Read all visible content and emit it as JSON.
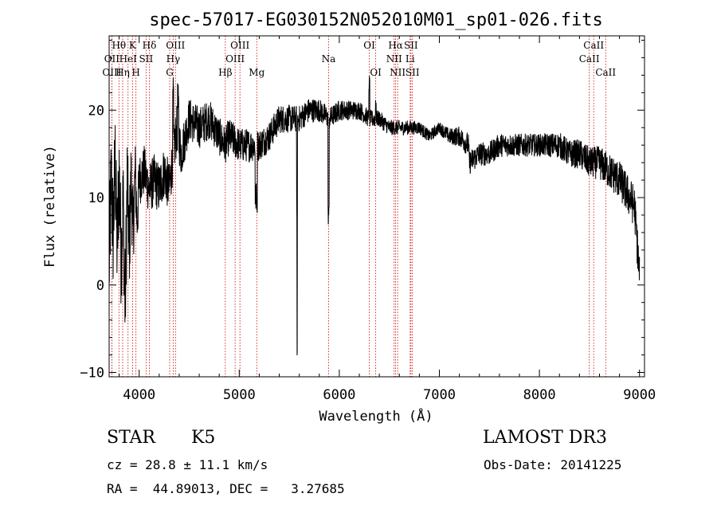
{
  "chart_data": {
    "type": "line",
    "title": "spec-57017-EG030152N052010M01_sp01-026.fits",
    "xlabel": "Wavelength (Å)",
    "ylabel": "Flux (relative)",
    "xlim": [
      3700,
      9050
    ],
    "ylim": [
      -10.5,
      28.5
    ],
    "x_ticks": [
      4000,
      5000,
      6000,
      7000,
      8000,
      9000
    ],
    "y_ticks": [
      -10,
      0,
      10,
      20
    ],
    "line_color": "#000000",
    "marker_color": "#cc0000",
    "anchors": [
      [
        3700,
        2
      ],
      [
        3720,
        12
      ],
      [
        3740,
        6
      ],
      [
        3760,
        14
      ],
      [
        3780,
        4
      ],
      [
        3800,
        13
      ],
      [
        3820,
        3
      ],
      [
        3840,
        10
      ],
      [
        3860,
        -3
      ],
      [
        3880,
        12
      ],
      [
        3900,
        4
      ],
      [
        3920,
        12
      ],
      [
        3940,
        6
      ],
      [
        3960,
        13
      ],
      [
        3980,
        7
      ],
      [
        4000,
        12
      ],
      [
        4050,
        13
      ],
      [
        4100,
        11
      ],
      [
        4150,
        12
      ],
      [
        4200,
        11
      ],
      [
        4250,
        13
      ],
      [
        4300,
        11
      ],
      [
        4340,
        15
      ],
      [
        4380,
        18
      ],
      [
        4420,
        15
      ],
      [
        4500,
        19
      ],
      [
        4600,
        18
      ],
      [
        4700,
        19
      ],
      [
        4800,
        17
      ],
      [
        4860,
        16
      ],
      [
        4900,
        17
      ],
      [
        5000,
        16
      ],
      [
        5100,
        16
      ],
      [
        5200,
        16
      ],
      [
        5300,
        17
      ],
      [
        5400,
        19
      ],
      [
        5500,
        19
      ],
      [
        5600,
        19
      ],
      [
        5700,
        20
      ],
      [
        5800,
        20
      ],
      [
        5900,
        19
      ],
      [
        6000,
        20
      ],
      [
        6100,
        20
      ],
      [
        6200,
        20
      ],
      [
        6300,
        19
      ],
      [
        6400,
        19
      ],
      [
        6500,
        18
      ],
      [
        6600,
        18
      ],
      [
        6700,
        18
      ],
      [
        6800,
        18
      ],
      [
        6900,
        17
      ],
      [
        7000,
        18
      ],
      [
        7100,
        17
      ],
      [
        7200,
        17
      ],
      [
        7290,
        16
      ],
      [
        7300,
        14
      ],
      [
        7400,
        15
      ],
      [
        7500,
        15
      ],
      [
        7600,
        16
      ],
      [
        7700,
        16
      ],
      [
        7800,
        16
      ],
      [
        7900,
        16
      ],
      [
        8000,
        16
      ],
      [
        8100,
        16
      ],
      [
        8200,
        16
      ],
      [
        8300,
        15
      ],
      [
        8400,
        15
      ],
      [
        8500,
        14
      ],
      [
        8600,
        14
      ],
      [
        8700,
        13
      ],
      [
        8800,
        12
      ],
      [
        8850,
        11
      ],
      [
        8900,
        10
      ],
      [
        8950,
        9
      ],
      [
        9000,
        1
      ]
    ],
    "noise": [
      [
        3700,
        7
      ],
      [
        3900,
        6
      ],
      [
        4000,
        3
      ],
      [
        4300,
        3
      ],
      [
        4500,
        2.5
      ],
      [
        5000,
        2
      ],
      [
        5500,
        1.6
      ],
      [
        6000,
        1.2
      ],
      [
        6500,
        0.9
      ],
      [
        7000,
        0.7
      ],
      [
        7300,
        1.4
      ],
      [
        8000,
        1.3
      ],
      [
        8500,
        1.8
      ],
      [
        9000,
        2.5
      ]
    ],
    "features": [
      {
        "x": 4340,
        "dy": 6,
        "w": 4
      },
      {
        "x": 4390,
        "dy": 3,
        "w": 6
      },
      {
        "x": 5170,
        "dy": -6,
        "w": 10
      },
      {
        "x": 5577,
        "dy": -28,
        "w": 3
      },
      {
        "x": 5575,
        "dy": 18,
        "w": 2
      },
      {
        "x": 5893,
        "dy": -11,
        "w": 5
      },
      {
        "x": 6300,
        "dy": 4,
        "w": 4
      },
      {
        "x": 6365,
        "dy": 2,
        "w": 3
      }
    ],
    "lines": [
      {
        "label": "Hθ",
        "wave": 3798,
        "row": 0
      },
      {
        "label": "OII",
        "wave": 3727,
        "row": 1
      },
      {
        "label": "OIII",
        "wave": 3727,
        "row": 2
      },
      {
        "label": "K",
        "wave": 3934,
        "row": 0
      },
      {
        "label": "HeI",
        "wave": 3889,
        "row": 1
      },
      {
        "label": "Hη",
        "wave": 3835,
        "row": 2
      },
      {
        "label": "Hδ",
        "wave": 4102,
        "row": 0
      },
      {
        "label": "SII",
        "wave": 4069,
        "row": 1
      },
      {
        "label": "H",
        "wave": 3968,
        "row": 2
      },
      {
        "label": "OIII",
        "wave": 4363,
        "row": 0
      },
      {
        "label": "Hγ",
        "wave": 4340,
        "row": 1
      },
      {
        "label": "G",
        "wave": 4305,
        "row": 2
      },
      {
        "label": "OIII",
        "wave": 5007,
        "row": 0
      },
      {
        "label": "OIII",
        "wave": 4959,
        "row": 1
      },
      {
        "label": "Hβ",
        "wave": 4861,
        "row": 2
      },
      {
        "label": "Mg",
        "wave": 5175,
        "row": 2
      },
      {
        "label": "Na",
        "wave": 5893,
        "row": 1
      },
      {
        "label": "OI",
        "wave": 6300,
        "row": 0
      },
      {
        "label": "OI",
        "wave": 6364,
        "row": 2
      },
      {
        "label": "Hα",
        "wave": 6563,
        "row": 0
      },
      {
        "label": "NII",
        "wave": 6548,
        "row": 1
      },
      {
        "label": "NII",
        "wave": 6583,
        "row": 2
      },
      {
        "label": "SII",
        "wave": 6716,
        "row": 0
      },
      {
        "label": "Li",
        "wave": 6708,
        "row": 1
      },
      {
        "label": "SII",
        "wave": 6731,
        "row": 2
      },
      {
        "label": "CaII",
        "wave": 8542,
        "row": 0
      },
      {
        "label": "CaII",
        "wave": 8498,
        "row": 1
      },
      {
        "label": "CaII",
        "wave": 8662,
        "row": 2
      }
    ]
  },
  "info": {
    "object_class": "STAR",
    "subclass": "K5",
    "survey": "LAMOST DR3",
    "cz": "cz = 28.8 ± 11.1 km/s",
    "obs_date": "Obs-Date: 20141225",
    "radec": "RA =  44.89013, DEC =   3.27685"
  }
}
